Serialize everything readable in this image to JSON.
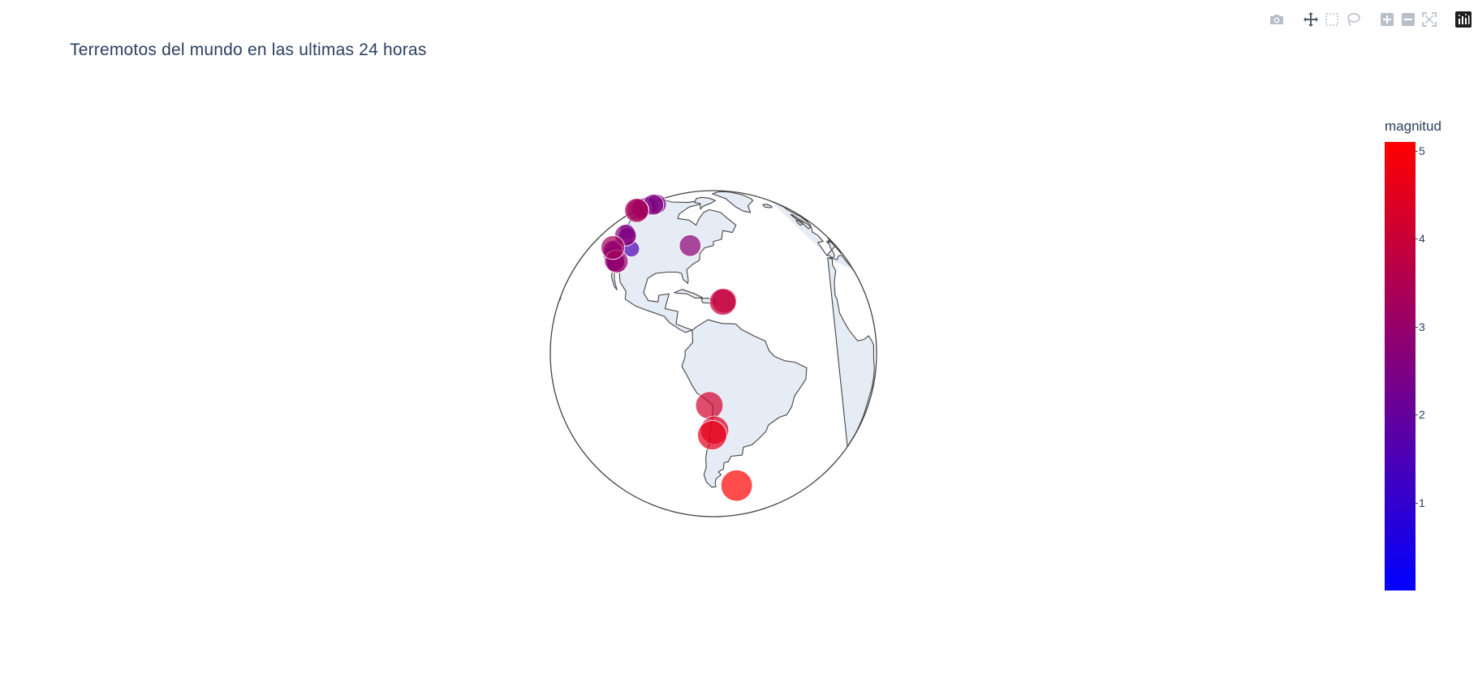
{
  "title": "Terremotos del mundo en las ultimas 24 horas",
  "modebar": {
    "icons": [
      "camera-icon",
      "pan-icon",
      "box-select-icon",
      "lasso-icon",
      "zoom-in-icon",
      "zoom-out-icon",
      "autoscale-icon",
      "plotly-logo-icon"
    ]
  },
  "colorbar": {
    "title": "magnitud",
    "min": 0,
    "max": 5.1,
    "ticks": [
      "1",
      "2",
      "3",
      "4",
      "5"
    ],
    "colors": {
      "low": "#0000ff",
      "high": "#ff0000"
    }
  },
  "map": {
    "projection": "orthographic",
    "land_color": "#e5ecf6",
    "coast_color": "#444444",
    "rotation": {
      "lon": -70,
      "lat": 0
    }
  },
  "chart_data": {
    "type": "scatter",
    "x_field": "longitude",
    "y_field": "latitude",
    "points": [
      {
        "lon": -150.5,
        "lat": 61.5,
        "mag": 3.4
      },
      {
        "lon": -149.0,
        "lat": 61.8,
        "mag": 3.0
      },
      {
        "lon": -147.5,
        "lat": 63.0,
        "mag": 2.5
      },
      {
        "lon": -145.0,
        "lat": 63.5,
        "mag": 2.0
      },
      {
        "lon": -142.0,
        "lat": 64.5,
        "mag": 2.2
      },
      {
        "lon": -139.0,
        "lat": 65.2,
        "mag": 1.8
      },
      {
        "lon": -135.0,
        "lat": 66.0,
        "mag": 2.6
      },
      {
        "lon": -131.0,
        "lat": 66.5,
        "mag": 2.4
      },
      {
        "lon": -123.0,
        "lat": 48.5,
        "mag": 1.4
      },
      {
        "lon": -121.5,
        "lat": 46.5,
        "mag": 2.8
      },
      {
        "lon": -119.5,
        "lat": 46.0,
        "mag": 1.9
      },
      {
        "lon": -122.8,
        "lat": 38.8,
        "mag": 1.2
      },
      {
        "lon": -123.2,
        "lat": 39.5,
        "mag": 2.1
      },
      {
        "lon": -122.5,
        "lat": 40.4,
        "mag": 1.6
      },
      {
        "lon": -124.3,
        "lat": 40.6,
        "mag": 3.3
      },
      {
        "lon": -121.8,
        "lat": 37.4,
        "mag": 1.7
      },
      {
        "lon": -120.0,
        "lat": 38.5,
        "mag": 1.0
      },
      {
        "lon": -117.5,
        "lat": 34.6,
        "mag": 2.6
      },
      {
        "lon": -116.4,
        "lat": 33.9,
        "mag": 1.8
      },
      {
        "lon": -116.0,
        "lat": 34.5,
        "mag": 3.1
      },
      {
        "lon": -115.5,
        "lat": 33.4,
        "mag": 2.0
      },
      {
        "lon": -118.3,
        "lat": 35.2,
        "mag": 1.3
      },
      {
        "lon": -111.0,
        "lat": 40.0,
        "mag": 1.5
      },
      {
        "lon": -81.0,
        "lat": 41.5,
        "mag": 2.8
      },
      {
        "lon": -66.0,
        "lat": 19.0,
        "mag": 3.6
      },
      {
        "lon": -66.5,
        "lat": 18.5,
        "mag": 4.0
      },
      {
        "lon": -71.5,
        "lat": -18.5,
        "mag": 4.2
      },
      {
        "lon": -69.5,
        "lat": -28.0,
        "mag": 4.4
      },
      {
        "lon": -70.5,
        "lat": -30.0,
        "mag": 4.6
      },
      {
        "lon": -56.0,
        "lat": -54.0,
        "mag": 5.1
      }
    ]
  }
}
